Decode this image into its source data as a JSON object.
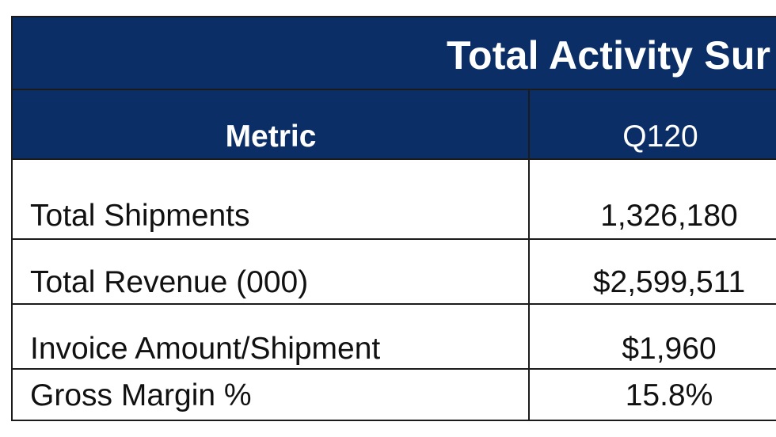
{
  "table": {
    "title": "Total Activity Sur",
    "headers": {
      "metric": "Metric",
      "period": "Q120"
    },
    "rows": [
      {
        "metric": "Total Shipments",
        "q120": "1,326,180"
      },
      {
        "metric": "Total Revenue (000)",
        "q120": "$2,599,511"
      },
      {
        "metric": "Invoice Amount/Shipment",
        "q120": "$1,960"
      },
      {
        "metric": "Gross Margin %",
        "q120": "15.8%"
      }
    ]
  },
  "colors": {
    "header_background": "#0b2e66",
    "header_text": "#ffffff",
    "grid_lines": "#1b1b1b",
    "body_text": "#111111"
  }
}
